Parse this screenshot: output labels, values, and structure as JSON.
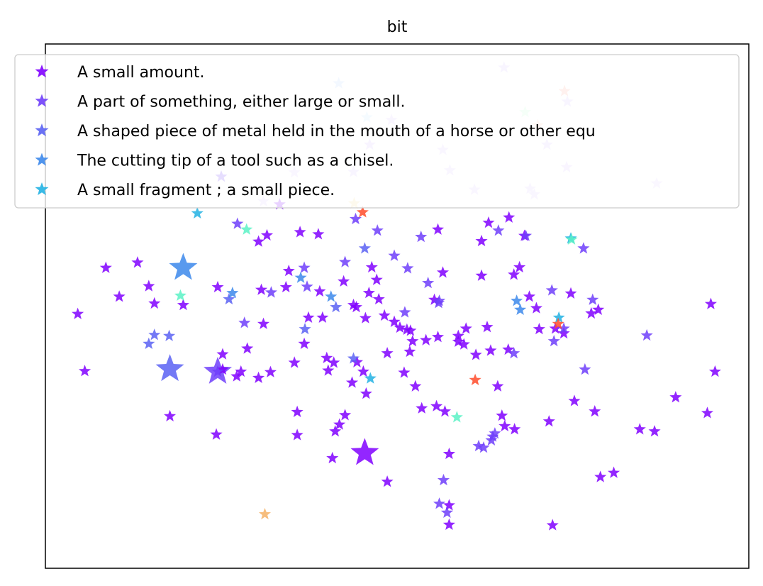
{
  "chart_data": {
    "type": "scatter",
    "title": "bit",
    "xlabel": "",
    "ylabel": "",
    "xlim": [
      0,
      100
    ],
    "ylim": [
      0,
      100
    ],
    "grid": false,
    "axis_ticks": false,
    "marker": "star",
    "legend_position": "top",
    "series": [
      {
        "name": "A small amount.",
        "color": "#8000ff",
        "points": [
          [
            4.6,
            48.5
          ],
          [
            5.6,
            37.6
          ],
          [
            8.6,
            57.3
          ],
          [
            10.5,
            51.8
          ],
          [
            13.1,
            58.3
          ],
          [
            14.7,
            53.8
          ],
          [
            15.5,
            50.5
          ],
          [
            17.7,
            29.0
          ],
          [
            19.6,
            50.2
          ],
          [
            24.3,
            25.5
          ],
          [
            24.5,
            53.6
          ],
          [
            25.2,
            37.9
          ],
          [
            25.2,
            40.8
          ],
          [
            27.2,
            36.6
          ],
          [
            27.8,
            37.5
          ],
          [
            28.7,
            41.9
          ],
          [
            30.3,
            62.3
          ],
          [
            30.3,
            36.3
          ],
          [
            30.7,
            53.1
          ],
          [
            31.0,
            46.6
          ],
          [
            31.5,
            63.5
          ],
          [
            32.0,
            37.4
          ],
          [
            33.3,
            69.4
          ],
          [
            34.2,
            53.6
          ],
          [
            34.6,
            56.7
          ],
          [
            35.4,
            39.2
          ],
          [
            35.8,
            29.8
          ],
          [
            35.8,
            25.4
          ],
          [
            36.2,
            64.1
          ],
          [
            36.8,
            42.8
          ],
          [
            37.4,
            47.8
          ],
          [
            38.8,
            63.7
          ],
          [
            39.0,
            52.8
          ],
          [
            39.4,
            47.8
          ],
          [
            40.0,
            40.1
          ],
          [
            40.2,
            37.7
          ],
          [
            40.8,
            21.0
          ],
          [
            41.0,
            39.2
          ],
          [
            41.2,
            26.1
          ],
          [
            41.8,
            27.4
          ],
          [
            42.4,
            54.7
          ],
          [
            42.6,
            29.2
          ],
          [
            43.6,
            35.4
          ],
          [
            43.8,
            50.2
          ],
          [
            44.2,
            49.8
          ],
          [
            44.3,
            39.3
          ],
          [
            45.2,
            37.5
          ],
          [
            45.5,
            47.7
          ],
          [
            45.6,
            33.3
          ],
          [
            46.0,
            52.5
          ],
          [
            46.4,
            57.4
          ],
          [
            47.1,
            55.0
          ],
          [
            47.4,
            51.3
          ],
          [
            48.2,
            48.2
          ],
          [
            48.6,
            41.0
          ],
          [
            48.6,
            16.5
          ],
          [
            49.6,
            47.0
          ],
          [
            50.4,
            45.9
          ],
          [
            51.0,
            37.3
          ],
          [
            51.4,
            45.5
          ],
          [
            51.8,
            41.3
          ],
          [
            51.9,
            45.3
          ],
          [
            52.2,
            43.3
          ],
          [
            52.6,
            34.7
          ],
          [
            53.5,
            30.5
          ],
          [
            54.1,
            43.5
          ],
          [
            55.3,
            51.2
          ],
          [
            55.6,
            30.9
          ],
          [
            55.8,
            64.6
          ],
          [
            55.8,
            44.1
          ],
          [
            56.5,
            56.4
          ],
          [
            56.8,
            29.9
          ],
          [
            57.4,
            21.8
          ],
          [
            57.4,
            12.0
          ],
          [
            57.4,
            8.3
          ],
          [
            58.7,
            44.3
          ],
          [
            58.7,
            43.2
          ],
          [
            59.5,
            42.7
          ],
          [
            59.8,
            45.7
          ],
          [
            61.2,
            40.7
          ],
          [
            62.0,
            55.8
          ],
          [
            62.0,
            62.4
          ],
          [
            62.8,
            46.0
          ],
          [
            63.0,
            65.9
          ],
          [
            63.3,
            41.5
          ],
          [
            64.3,
            34.7
          ],
          [
            64.9,
            29.1
          ],
          [
            65.3,
            27.1
          ],
          [
            65.8,
            41.7
          ],
          [
            65.9,
            66.9
          ],
          [
            66.6,
            56.0
          ],
          [
            66.7,
            26.5
          ],
          [
            67.4,
            57.4
          ],
          [
            68.1,
            63.4
          ],
          [
            68.8,
            51.8
          ],
          [
            69.8,
            49.6
          ],
          [
            70.2,
            45.6
          ],
          [
            71.6,
            28.0
          ],
          [
            72.1,
            8.2
          ],
          [
            72.5,
            45.7
          ],
          [
            73.7,
            44.8
          ],
          [
            74.7,
            52.4
          ],
          [
            75.2,
            31.9
          ],
          [
            77.6,
            48.6
          ],
          [
            78.1,
            29.9
          ],
          [
            78.6,
            49.3
          ],
          [
            78.9,
            17.4
          ],
          [
            80.8,
            18.2
          ],
          [
            84.5,
            26.5
          ],
          [
            86.6,
            26.1
          ],
          [
            89.6,
            32.6
          ],
          [
            94.1,
            29.6
          ],
          [
            95.2,
            37.5
          ],
          [
            94.6,
            50.4
          ]
        ]
      },
      {
        "name": "A part of something, either large or small.",
        "color": "#6f3efa",
        "points": [
          [
            24.5,
            37.5
          ],
          [
            25.0,
            74.7
          ],
          [
            27.3,
            65.7
          ],
          [
            28.3,
            46.8
          ],
          [
            32.1,
            52.6
          ],
          [
            36.8,
            57.3
          ],
          [
            37.2,
            53.7
          ],
          [
            42.6,
            58.4
          ],
          [
            44.1,
            66.6
          ],
          [
            47.2,
            64.4
          ],
          [
            49.6,
            59.6
          ],
          [
            51.1,
            48.8
          ],
          [
            51.5,
            57.2
          ],
          [
            53.4,
            63.2
          ],
          [
            54.4,
            54.4
          ],
          [
            55.9,
            50.6
          ],
          [
            56.0,
            51.0
          ],
          [
            56.6,
            16.8
          ],
          [
            56.0,
            12.3
          ],
          [
            57.1,
            10.6
          ],
          [
            61.6,
            23.3
          ],
          [
            62.3,
            23.0
          ],
          [
            63.4,
            24.4
          ],
          [
            63.6,
            25.1
          ],
          [
            63.9,
            25.7
          ],
          [
            64.4,
            64.4
          ],
          [
            66.6,
            41.0
          ],
          [
            68.3,
            63.4
          ],
          [
            72.0,
            53.0
          ],
          [
            72.3,
            43.3
          ],
          [
            73.7,
            45.7
          ],
          [
            76.5,
            61.0
          ],
          [
            76.7,
            37.9
          ],
          [
            77.8,
            51.2
          ],
          [
            85.5,
            44.4
          ]
        ]
      },
      {
        "name": "A shaped piece of metal held in the mouth of a horse or other equ",
        "color": "#5a62f3",
        "points": [
          [
            14.7,
            42.8
          ],
          [
            15.5,
            44.5
          ],
          [
            17.6,
            44.3
          ],
          [
            26.1,
            51.3
          ],
          [
            36.9,
            45.6
          ],
          [
            41.3,
            49.8
          ],
          [
            43.8,
            40.0
          ],
          [
            45.4,
            61.0
          ]
        ]
      },
      {
        "name": "The cutting tip of a tool such as a chisel.",
        "color": "#3c88eb",
        "points": [
          [
            26.6,
            52.5
          ],
          [
            36.3,
            55.4
          ],
          [
            40.6,
            51.8
          ],
          [
            67.0,
            51.0
          ],
          [
            67.5,
            49.3
          ]
        ]
      },
      {
        "name": "A small fragment ; a small piece.",
        "color": "#22b2e3",
        "points": [
          [
            21.6,
            67.7
          ],
          [
            46.2,
            36.2
          ],
          [
            73.0,
            47.8
          ],
          [
            74.7,
            62.9
          ]
        ]
      },
      {
        "name": "",
        "color": "#5af2c5",
        "points": [
          [
            19.2,
            52.0
          ],
          [
            28.6,
            64.6
          ],
          [
            58.5,
            28.8
          ],
          [
            74.8,
            62.7
          ]
        ]
      },
      {
        "name": "",
        "color": "#ff4b2a",
        "points": [
          [
            45.1,
            67.9
          ],
          [
            61.1,
            35.9
          ],
          [
            72.9,
            46.6
          ]
        ]
      },
      {
        "name": "",
        "color": "#f4b266",
        "points": [
          [
            31.2,
            10.3
          ]
        ]
      }
    ],
    "large_markers": [
      {
        "x": 19.6,
        "y": 57.3,
        "color": "#3c88eb"
      },
      {
        "x": 17.7,
        "y": 38.0,
        "color": "#5a62f3"
      },
      {
        "x": 24.5,
        "y": 37.5,
        "color": "#6f3efa"
      },
      {
        "x": 45.4,
        "y": 22.0,
        "color": "#8000ff"
      }
    ],
    "legend_occluded_points": [
      {
        "x": 41.7,
        "y": 92.5,
        "color": "#bcd8ff"
      },
      {
        "x": 65.2,
        "y": 95.5,
        "color": "#d6c7ff"
      },
      {
        "x": 73.8,
        "y": 91.0,
        "color": "#ffb0a0"
      },
      {
        "x": 74.2,
        "y": 89.0,
        "color": "#d9c8ff"
      },
      {
        "x": 68.2,
        "y": 87.0,
        "color": "#c9ffd9"
      },
      {
        "x": 45.7,
        "y": 86.0,
        "color": "#c8e8ff"
      },
      {
        "x": 71.3,
        "y": 80.8,
        "color": "#d8c7ff"
      },
      {
        "x": 74.1,
        "y": 76.5,
        "color": "#dac9ff"
      },
      {
        "x": 56.5,
        "y": 79.8,
        "color": "#dccbff"
      },
      {
        "x": 57.5,
        "y": 75.9,
        "color": "#dccbff"
      },
      {
        "x": 86.9,
        "y": 73.4,
        "color": "#e0d0ff"
      },
      {
        "x": 35.4,
        "y": 75.5,
        "color": "#dccbff"
      },
      {
        "x": 43.8,
        "y": 75.6,
        "color": "#d7c6ff"
      },
      {
        "x": 68.9,
        "y": 72.4,
        "color": "#dccbff"
      },
      {
        "x": 46.1,
        "y": 80.8,
        "color": "#d5c3ff"
      },
      {
        "x": 61.0,
        "y": 72.2,
        "color": "#dccbff"
      },
      {
        "x": 69.5,
        "y": 71.3,
        "color": "#dccbff"
      },
      {
        "x": 49.2,
        "y": 85.5,
        "color": "#dacaff"
      },
      {
        "x": 31.0,
        "y": 70.0,
        "color": "#ddccff"
      },
      {
        "x": 43.9,
        "y": 69.6,
        "color": "#f4dd99"
      },
      {
        "x": 70.0,
        "y": 84.5,
        "color": "#ffd4bf"
      }
    ]
  }
}
